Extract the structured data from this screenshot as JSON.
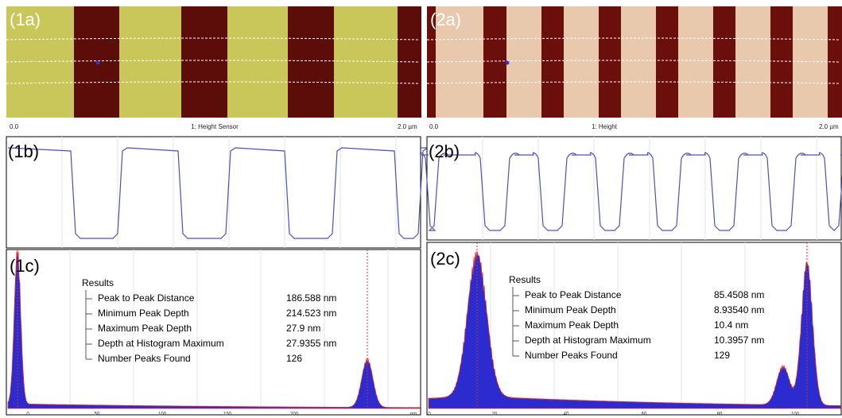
{
  "panels": [
    {
      "image_label": "(1a)",
      "scale": {
        "start": "0.0",
        "title": "1: Height Sensor",
        "end": "2.0 µm"
      },
      "profile_label": "(1b)",
      "histogram_label": "(1c)",
      "results": {
        "title": "Results",
        "rows": [
          {
            "name": "Peak to Peak Distance",
            "value": "186.588 nm"
          },
          {
            "name": "Minimum Peak Depth",
            "value": "214.523 nm"
          },
          {
            "name": "Maximum Peak Depth",
            "value": "27.9 nm"
          },
          {
            "name": "Depth at Histogram Maximum",
            "value": "27.9355 nm"
          },
          {
            "name": "Number Peaks Found",
            "value": "126"
          }
        ]
      },
      "histogram_axis": [
        "0",
        "50",
        "100",
        "150",
        "200",
        "nm"
      ]
    },
    {
      "image_label": "(2a)",
      "scale": {
        "start": "0.0",
        "title": "1: Height",
        "end": "2.0 µm"
      },
      "profile_label": "(2b)",
      "histogram_label": "(2c)",
      "results": {
        "title": "Results",
        "rows": [
          {
            "name": "Peak to Peak Distance",
            "value": "85.4508 nm"
          },
          {
            "name": "Minimum Peak Depth",
            "value": "8.93540 nm"
          },
          {
            "name": "Maximum Peak Depth",
            "value": "10.4 nm"
          },
          {
            "name": "Depth at Histogram Maximum",
            "value": "10.3957 nm"
          },
          {
            "name": "Number Peaks Found",
            "value": "129"
          }
        ]
      },
      "histogram_axis": [
        "0",
        "20",
        "40",
        "60",
        "80",
        "100"
      ]
    }
  ]
}
